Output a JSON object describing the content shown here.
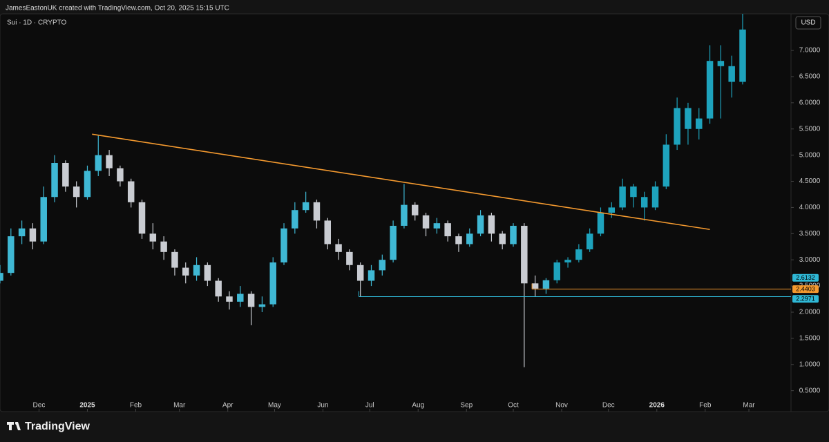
{
  "header": {
    "credit": "JamesEastonUK created with TradingView.com, Oct 20, 2025 15:15 UTC"
  },
  "footer": {
    "brand": "TradingView"
  },
  "chart_data": {
    "type": "candlestick",
    "title": "Sui · 1D · CRYPTO",
    "currency": "USD",
    "xlim": [
      -56,
      451
    ],
    "ylim": [
      0.1,
      7.7
    ],
    "xticks": [
      {
        "value": -31,
        "label": "Dec"
      },
      {
        "value": 0,
        "label": "2025"
      },
      {
        "value": 31,
        "label": "Feb"
      },
      {
        "value": 59,
        "label": "Mar"
      },
      {
        "value": 90,
        "label": "Apr"
      },
      {
        "value": 120,
        "label": "May"
      },
      {
        "value": 151,
        "label": "Jun"
      },
      {
        "value": 181,
        "label": "Jul"
      },
      {
        "value": 212,
        "label": "Aug"
      },
      {
        "value": 243,
        "label": "Sep"
      },
      {
        "value": 273,
        "label": "Oct"
      },
      {
        "value": 304,
        "label": "Nov"
      },
      {
        "value": 334,
        "label": "Dec"
      },
      {
        "value": 365,
        "label": "2026"
      },
      {
        "value": 396,
        "label": "Feb"
      },
      {
        "value": 424,
        "label": "Mar"
      }
    ],
    "yticks": [
      {
        "value": 0.5,
        "label": "0.5000"
      },
      {
        "value": 1,
        "label": "1.0000"
      },
      {
        "value": 1.5,
        "label": "1.5000"
      },
      {
        "value": 2,
        "label": "2.0000"
      },
      {
        "value": 2.5,
        "label": "2.5000"
      },
      {
        "value": 3,
        "label": "3.0000"
      },
      {
        "value": 3.5,
        "label": "3.5000"
      },
      {
        "value": 4,
        "label": "4.0000"
      },
      {
        "value": 4.5,
        "label": "4.5000"
      },
      {
        "value": 5,
        "label": "5.0000"
      },
      {
        "value": 5.5,
        "label": "5.5000"
      },
      {
        "value": 6,
        "label": "6.0000"
      },
      {
        "value": 6.5,
        "label": "6.5000"
      },
      {
        "value": 7,
        "label": "7.0000"
      }
    ],
    "series": [
      {
        "up_color": "#3fb8d4",
        "down_color": "#c9ccd2",
        "x": [
          -56,
          -49,
          -42,
          -35,
          -28,
          -21,
          -14,
          -7,
          0,
          7,
          14,
          21,
          28,
          35,
          42,
          49,
          56,
          63,
          70,
          77,
          84,
          91,
          98,
          105,
          112,
          119,
          126,
          133,
          140,
          147,
          154,
          161,
          168,
          175,
          182,
          189,
          196,
          203,
          210,
          217,
          224,
          231,
          238,
          245,
          252,
          259,
          266,
          273,
          280,
          287,
          294
        ],
        "open": [
          2.6,
          2.75,
          3.45,
          3.6,
          3.35,
          4.2,
          4.85,
          4.4,
          4.2,
          4.7,
          5.0,
          4.75,
          4.5,
          4.1,
          3.5,
          3.35,
          3.15,
          2.85,
          2.7,
          2.9,
          2.6,
          2.3,
          2.2,
          2.35,
          2.1,
          2.15,
          2.95,
          3.6,
          3.95,
          4.1,
          3.75,
          3.3,
          3.15,
          2.9,
          2.6,
          2.8,
          3.0,
          3.65,
          4.05,
          3.85,
          3.6,
          3.7,
          3.45,
          3.3,
          3.5,
          3.85,
          3.5,
          3.3,
          3.65,
          2.55,
          2.45
        ],
        "high": [
          2.9,
          3.6,
          3.75,
          3.7,
          4.4,
          5.0,
          4.9,
          4.5,
          4.8,
          5.37,
          5.1,
          4.8,
          4.55,
          4.15,
          3.7,
          3.45,
          3.2,
          2.95,
          3.05,
          2.95,
          2.65,
          2.4,
          2.5,
          2.4,
          2.3,
          3.05,
          3.7,
          4.1,
          4.3,
          4.15,
          3.8,
          3.4,
          3.2,
          2.95,
          2.9,
          3.1,
          3.75,
          4.45,
          4.1,
          3.9,
          3.8,
          3.75,
          3.5,
          3.6,
          3.95,
          3.9,
          3.55,
          3.7,
          3.7,
          2.7,
          2.65
        ],
        "low": [
          2.55,
          2.7,
          3.3,
          3.2,
          3.3,
          4.1,
          4.3,
          4.0,
          4.15,
          4.6,
          4.6,
          4.4,
          4.0,
          3.4,
          3.2,
          3.0,
          2.7,
          2.55,
          2.6,
          2.5,
          2.2,
          2.05,
          2.1,
          1.75,
          2.0,
          2.1,
          2.9,
          3.5,
          3.9,
          3.6,
          3.2,
          3.0,
          2.8,
          2.3,
          2.5,
          2.7,
          2.95,
          3.6,
          3.75,
          3.45,
          3.5,
          3.35,
          3.15,
          3.25,
          3.45,
          3.35,
          3.2,
          3.25,
          0.95,
          2.3,
          2.35
        ],
        "close": [
          2.75,
          3.45,
          3.6,
          3.35,
          4.2,
          4.85,
          4.4,
          4.2,
          4.7,
          5.0,
          4.75,
          4.5,
          4.1,
          3.5,
          3.35,
          3.15,
          2.85,
          2.7,
          2.9,
          2.6,
          2.3,
          2.2,
          2.35,
          2.1,
          2.15,
          2.95,
          3.6,
          3.95,
          4.1,
          3.75,
          3.3,
          3.15,
          2.9,
          2.6,
          2.8,
          3.0,
          3.65,
          4.05,
          3.85,
          3.6,
          3.7,
          3.45,
          3.3,
          3.5,
          3.85,
          3.5,
          3.3,
          3.65,
          2.55,
          2.45,
          2.61
        ]
      },
      {
        "up_color": "#1ea3bd",
        "down_color": "#1ea3bd",
        "x": [
          301,
          308,
          315,
          322,
          329,
          336,
          343,
          350,
          357,
          364,
          371,
          378,
          385,
          392,
          399,
          406,
          413,
          420
        ],
        "open": [
          2.61,
          2.95,
          3.0,
          3.2,
          3.5,
          3.9,
          4.0,
          4.4,
          4.2,
          4.0,
          4.4,
          5.2,
          5.9,
          5.5,
          5.7,
          6.8,
          6.7,
          6.4
        ],
        "high": [
          3.0,
          3.05,
          3.3,
          3.6,
          4.0,
          4.1,
          4.55,
          4.45,
          4.3,
          4.5,
          5.4,
          6.1,
          6.0,
          5.9,
          7.1,
          7.1,
          6.9,
          7.7
        ],
        "low": [
          2.55,
          2.85,
          2.95,
          3.15,
          3.45,
          3.8,
          3.95,
          4.0,
          3.75,
          3.95,
          4.35,
          5.1,
          5.2,
          5.3,
          5.6,
          5.7,
          6.1,
          6.35
        ],
        "close": [
          2.95,
          3.0,
          3.2,
          3.5,
          3.9,
          4.0,
          4.4,
          4.2,
          4.0,
          4.4,
          5.2,
          5.9,
          5.5,
          5.7,
          6.8,
          6.7,
          6.4,
          7.4
        ]
      }
    ],
    "trendline": {
      "x": [
        3,
        399
      ],
      "y": [
        5.4,
        3.58
      ],
      "color": "#f59a2f"
    },
    "levels": [
      {
        "value": 2.4403,
        "x_start": 285,
        "color": "#f59a2f"
      },
      {
        "value": 2.2971,
        "x_start": 174,
        "color": "#2fb8d6"
      }
    ],
    "price_labels": [
      {
        "value": 2.6132,
        "color": "#2fb8d6"
      },
      {
        "value": 2.4403,
        "color": "#f59a2f"
      },
      {
        "value": 2.2971,
        "color": "#2fb8d6"
      }
    ]
  }
}
